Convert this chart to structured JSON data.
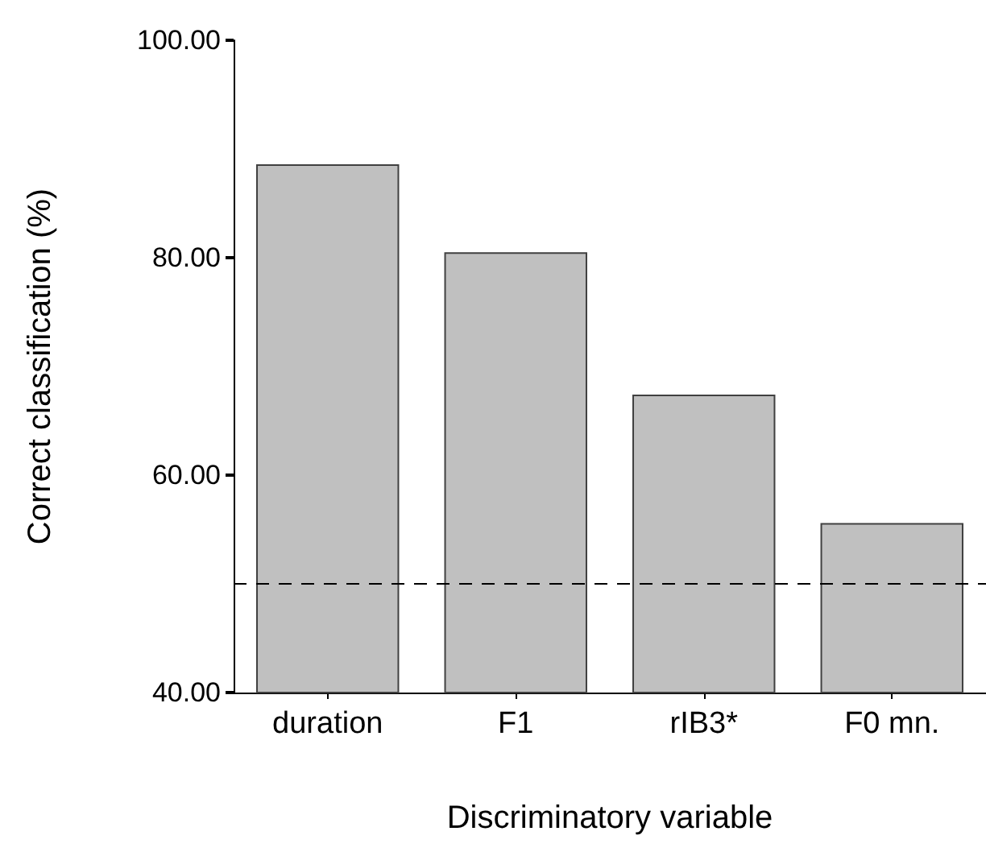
{
  "chart_data": {
    "type": "bar",
    "xlabel": "Discriminatory variable",
    "ylabel": "Correct classification (%)",
    "categories": [
      "duration",
      "F1",
      "rIB3*",
      "F0 mn."
    ],
    "values": [
      88.6,
      80.5,
      67.4,
      55.6
    ],
    "color": "#c0c0c0",
    "ylim": [
      40,
      100
    ],
    "yticks": [
      {
        "value": 40,
        "label": "40.00"
      },
      {
        "value": 60,
        "label": "60.00"
      },
      {
        "value": 80,
        "label": "80.00"
      },
      {
        "value": 100,
        "label": "100.00"
      }
    ],
    "ref_lines": [
      {
        "axis": "y",
        "value": 50,
        "line_style": "dashed",
        "color": "#000000"
      }
    ],
    "grid": false
  }
}
